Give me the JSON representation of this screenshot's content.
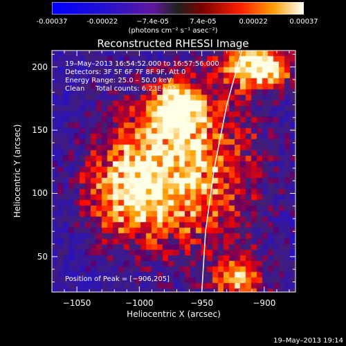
{
  "chart_data": {
    "type": "heatmap",
    "title": "Reconstructed RHESSI Image",
    "xlabel": "Heliocentric X (arcsec)",
    "ylabel": "Heliocentric Y (arcsec)",
    "xlim": [
      -1070,
      -875
    ],
    "ylim": [
      22,
      213
    ],
    "xticks": [
      -1050,
      -1000,
      -950,
      -900
    ],
    "yticks": [
      50,
      100,
      150,
      200
    ],
    "colorbar": {
      "ticks": [
        "-0.00037",
        "-0.00022",
        "−7.4e-05",
        "7.4e-05",
        "0.00022",
        "0.00037"
      ],
      "units": "(photons cm⁻² s⁻¹ asec⁻²)",
      "range": [
        -0.00037,
        0.00037
      ]
    },
    "annotations": {
      "time": "19–May–2013 16:54:52.000 to 16:57:56.000",
      "detectors": "Detectors: 3F 5F 6F 7F 8F 9F, Att 0",
      "energy": "Energy Range: 25.0 – 50.0 keV",
      "method": "Clean     Total counts: 6.23E+03",
      "peak": "Position of Peak = [−906,205]"
    },
    "limb_curve": [
      [
        -950,
        22
      ],
      [
        -947,
        70
      ],
      [
        -940,
        120
      ],
      [
        -930,
        170
      ],
      [
        -918,
        213
      ]
    ],
    "sources": [
      {
        "x": -960,
        "y": 120,
        "level": 0.55,
        "sx": 40,
        "sy": 48
      },
      {
        "x": -970,
        "y": 165,
        "level": 0.7,
        "sx": 14,
        "sy": 14
      },
      {
        "x": -1010,
        "y": 105,
        "level": 0.35,
        "sx": 25,
        "sy": 30
      },
      {
        "x": -905,
        "y": 200,
        "level": 0.95,
        "sx": 20,
        "sy": 12
      },
      {
        "x": -920,
        "y": 30,
        "level": 0.4,
        "sx": 15,
        "sy": 15
      }
    ]
  },
  "footer": {
    "stamp": "19–May–2013 19:14"
  }
}
